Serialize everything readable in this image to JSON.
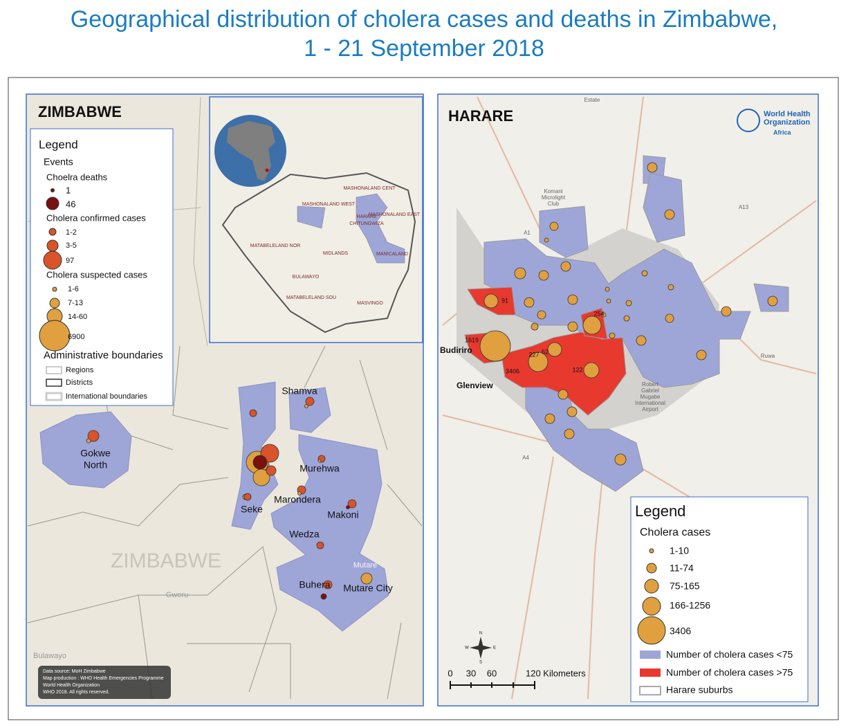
{
  "title": [
    "Geographical distribution of cholera cases and deaths in Zimbabwe,",
    "1 - 21 September 2018"
  ],
  "zimbabwe": {
    "heading": "ZIMBABWE",
    "legend": {
      "title": "Legend",
      "events": "Events",
      "deaths": {
        "title": "Choelra deaths",
        "items": [
          "1",
          "46"
        ]
      },
      "confirmed": {
        "title": "Cholera confirmed cases",
        "items": [
          "1-2",
          "3-5",
          "97"
        ]
      },
      "suspected": {
        "title": "Cholera suspected  cases",
        "items": [
          "1-6",
          "7-13",
          "14-60",
          "6900"
        ]
      },
      "admin": {
        "title": "Administrative boundaries",
        "items": [
          "Regions",
          "Districts",
          "International boundaries"
        ]
      }
    },
    "inset_labels": [
      "MASHONALAND WEST",
      "MASHONALAND CENT",
      "MASHONALAND EAST",
      "HARARE",
      "CHITUNGWIZA",
      "MANICALAND",
      "MATABELELAND NOR",
      "MIDLANDS",
      "BULAWAYO",
      "MATABELELAND SOU",
      "MASVINGO"
    ],
    "district_labels": [
      "Shamva",
      "Gokwe",
      "North",
      "Murehwa",
      "Marondera",
      "Seke",
      "Makoni",
      "Wedza",
      "Buhera",
      "Mutare City"
    ],
    "place_labels": [
      "ZIMBABWE",
      "Mutare",
      "Gweru",
      "Bulawayo"
    ],
    "credits": [
      "Data source: MoH Zimbabwe",
      "Map production : WHO Health Emergencies Programme",
      "World Health Organization",
      "WHO 2018. All rights reserved."
    ]
  },
  "harare": {
    "heading": "HARARE",
    "logo": [
      "World Health",
      "Organization",
      "Africa"
    ],
    "areas": [
      "Budiriro",
      "Glenview"
    ],
    "case_labels": [
      91,
      1619,
      3406,
      227,
      62,
      254,
      122
    ],
    "map_labels": [
      "Estate",
      "Komani",
      "Microlight",
      "Club",
      "Robert",
      "Gabriel",
      "Mugabe",
      "International",
      "Airport",
      "Ruwa",
      "A1",
      "A4",
      "A13"
    ],
    "legend": {
      "title": "Legend",
      "subtitle": "Cholera cases",
      "sizes": [
        "1-10",
        "11-74",
        "75-165",
        "166-1256",
        "3406"
      ],
      "fills": [
        "Number of cholera cases <75",
        "Number of cholera cases >75",
        "Harare suburbs"
      ]
    },
    "scale": [
      "0",
      "30",
      "60",
      "120 Kilometers"
    ],
    "compass": [
      "N",
      "S",
      "E",
      "W"
    ]
  }
}
